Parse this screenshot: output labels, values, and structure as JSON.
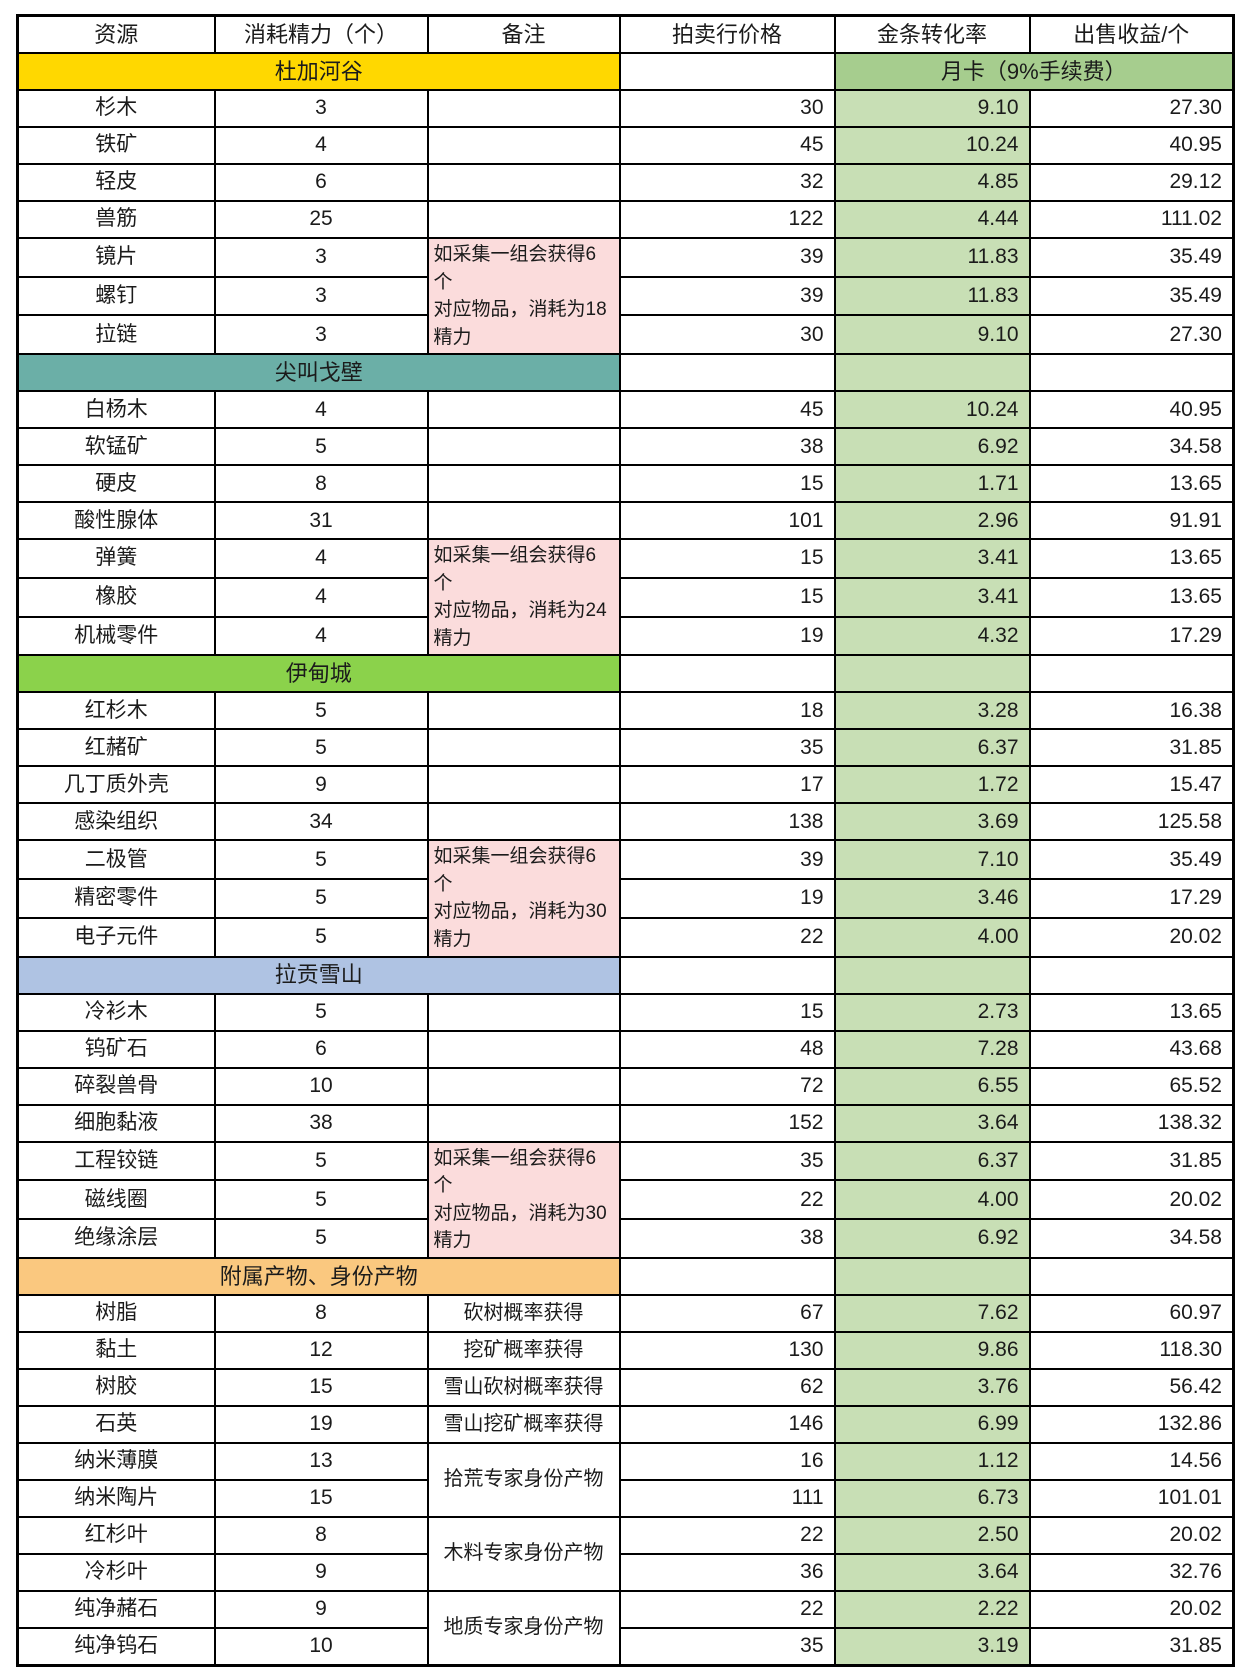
{
  "columns": [
    "资源",
    "消耗精力（个）",
    "备注",
    "拍卖行价格",
    "金条转化率",
    "出售收益/个"
  ],
  "month_card": "月卡（9%手续费）",
  "colors": {
    "rate_column_bg": "#c8dfb5",
    "month_card_bg": "#a6cd8e",
    "note_pink_bg": "#fbdcdc",
    "section_dujia": "#ffd800",
    "section_jianjiao": "#6bafa7",
    "section_yidian": "#8bd24b",
    "section_lagong": "#afc3e3",
    "section_fushu": "#fac87f",
    "border": "#000000"
  },
  "sections": [
    {
      "title": "杜加河谷",
      "color": "#ffd800",
      "rows": [
        {
          "resource": "杉木",
          "energy": "3",
          "note": "",
          "price": "30",
          "rate": "9.10",
          "profit": "27.30"
        },
        {
          "resource": "铁矿",
          "energy": "4",
          "note": "",
          "price": "45",
          "rate": "10.24",
          "profit": "40.95"
        },
        {
          "resource": "轻皮",
          "energy": "6",
          "note": "",
          "price": "32",
          "rate": "4.85",
          "profit": "29.12"
        },
        {
          "resource": "兽筋",
          "energy": "25",
          "note": "",
          "price": "122",
          "rate": "4.44",
          "profit": "111.02"
        },
        {
          "resource": "镜片",
          "energy": "3",
          "note": {
            "text": "如采集一组会获得6个\n对应物品，消耗为18\n精力",
            "span": 3,
            "pink": true
          },
          "price": "39",
          "rate": "11.83",
          "profit": "35.49"
        },
        {
          "resource": "螺钉",
          "energy": "3",
          "note": null,
          "price": "39",
          "rate": "11.83",
          "profit": "35.49"
        },
        {
          "resource": "拉链",
          "energy": "3",
          "note": null,
          "price": "30",
          "rate": "9.10",
          "profit": "27.30"
        }
      ]
    },
    {
      "title": "尖叫戈壁",
      "color": "#6bafa7",
      "rows": [
        {
          "resource": "白杨木",
          "energy": "4",
          "note": "",
          "price": "45",
          "rate": "10.24",
          "profit": "40.95"
        },
        {
          "resource": "软锰矿",
          "energy": "5",
          "note": "",
          "price": "38",
          "rate": "6.92",
          "profit": "34.58"
        },
        {
          "resource": "硬皮",
          "energy": "8",
          "note": "",
          "price": "15",
          "rate": "1.71",
          "profit": "13.65"
        },
        {
          "resource": "酸性腺体",
          "energy": "31",
          "note": "",
          "price": "101",
          "rate": "2.96",
          "profit": "91.91"
        },
        {
          "resource": "弹簧",
          "energy": "4",
          "note": {
            "text": "如采集一组会获得6个\n对应物品，消耗为24\n精力",
            "span": 3,
            "pink": true
          },
          "price": "15",
          "rate": "3.41",
          "profit": "13.65"
        },
        {
          "resource": "橡胶",
          "energy": "4",
          "note": null,
          "price": "15",
          "rate": "3.41",
          "profit": "13.65"
        },
        {
          "resource": "机械零件",
          "energy": "4",
          "note": null,
          "price": "19",
          "rate": "4.32",
          "profit": "17.29"
        }
      ]
    },
    {
      "title": "伊甸城",
      "color": "#8bd24b",
      "rows": [
        {
          "resource": "红杉木",
          "energy": "5",
          "note": "",
          "price": "18",
          "rate": "3.28",
          "profit": "16.38"
        },
        {
          "resource": "红赭矿",
          "energy": "5",
          "note": "",
          "price": "35",
          "rate": "6.37",
          "profit": "31.85"
        },
        {
          "resource": "几丁质外壳",
          "energy": "9",
          "note": "",
          "price": "17",
          "rate": "1.72",
          "profit": "15.47"
        },
        {
          "resource": "感染组织",
          "energy": "34",
          "note": "",
          "price": "138",
          "rate": "3.69",
          "profit": "125.58"
        },
        {
          "resource": "二极管",
          "energy": "5",
          "note": {
            "text": "如采集一组会获得6个\n对应物品，消耗为30\n精力",
            "span": 3,
            "pink": true
          },
          "price": "39",
          "rate": "7.10",
          "profit": "35.49"
        },
        {
          "resource": "精密零件",
          "energy": "5",
          "note": null,
          "price": "19",
          "rate": "3.46",
          "profit": "17.29"
        },
        {
          "resource": "电子元件",
          "energy": "5",
          "note": null,
          "price": "22",
          "rate": "4.00",
          "profit": "20.02"
        }
      ]
    },
    {
      "title": "拉贡雪山",
      "color": "#afc3e3",
      "rows": [
        {
          "resource": "冷衫木",
          "energy": "5",
          "note": "",
          "price": "15",
          "rate": "2.73",
          "profit": "13.65"
        },
        {
          "resource": "钨矿石",
          "energy": "6",
          "note": "",
          "price": "48",
          "rate": "7.28",
          "profit": "43.68"
        },
        {
          "resource": "碎裂兽骨",
          "energy": "10",
          "note": "",
          "price": "72",
          "rate": "6.55",
          "profit": "65.52"
        },
        {
          "resource": "细胞黏液",
          "energy": "38",
          "note": "",
          "price": "152",
          "rate": "3.64",
          "profit": "138.32"
        },
        {
          "resource": "工程铰链",
          "energy": "5",
          "note": {
            "text": "如采集一组会获得6个\n对应物品，消耗为30\n精力",
            "span": 3,
            "pink": true
          },
          "price": "35",
          "rate": "6.37",
          "profit": "31.85"
        },
        {
          "resource": "磁线圈",
          "energy": "5",
          "note": null,
          "price": "22",
          "rate": "4.00",
          "profit": "20.02"
        },
        {
          "resource": "绝缘涂层",
          "energy": "5",
          "note": null,
          "price": "38",
          "rate": "6.92",
          "profit": "34.58"
        }
      ]
    },
    {
      "title": "附属产物、身份产物",
      "color": "#fac87f",
      "rows": [
        {
          "resource": "树脂",
          "energy": "8",
          "note": {
            "text": "砍树概率获得",
            "span": 1,
            "pink": false
          },
          "price": "67",
          "rate": "7.62",
          "profit": "60.97"
        },
        {
          "resource": "黏土",
          "energy": "12",
          "note": {
            "text": "挖矿概率获得",
            "span": 1,
            "pink": false
          },
          "price": "130",
          "rate": "9.86",
          "profit": "118.30"
        },
        {
          "resource": "树胶",
          "energy": "15",
          "note": {
            "text": "雪山砍树概率获得",
            "span": 1,
            "pink": false
          },
          "price": "62",
          "rate": "3.76",
          "profit": "56.42"
        },
        {
          "resource": "石英",
          "energy": "19",
          "note": {
            "text": "雪山挖矿概率获得",
            "span": 1,
            "pink": false
          },
          "price": "146",
          "rate": "6.99",
          "profit": "132.86"
        },
        {
          "resource": "纳米薄膜",
          "energy": "13",
          "note": {
            "text": "拾荒专家身份产物",
            "span": 2,
            "pink": false
          },
          "price": "16",
          "rate": "1.12",
          "profit": "14.56"
        },
        {
          "resource": "纳米陶片",
          "energy": "15",
          "note": null,
          "price": "111",
          "rate": "6.73",
          "profit": "101.01"
        },
        {
          "resource": "红杉叶",
          "energy": "8",
          "note": {
            "text": "木料专家身份产物",
            "span": 2,
            "pink": false
          },
          "price": "22",
          "rate": "2.50",
          "profit": "20.02"
        },
        {
          "resource": "冷杉叶",
          "energy": "9",
          "note": null,
          "price": "36",
          "rate": "3.64",
          "profit": "32.76"
        },
        {
          "resource": "纯净赭石",
          "energy": "9",
          "note": {
            "text": "地质专家身份产物",
            "span": 2,
            "pink": false
          },
          "price": "22",
          "rate": "2.22",
          "profit": "20.02"
        },
        {
          "resource": "纯净钨石",
          "energy": "10",
          "note": null,
          "price": "35",
          "rate": "3.19",
          "profit": "31.85"
        }
      ]
    }
  ]
}
